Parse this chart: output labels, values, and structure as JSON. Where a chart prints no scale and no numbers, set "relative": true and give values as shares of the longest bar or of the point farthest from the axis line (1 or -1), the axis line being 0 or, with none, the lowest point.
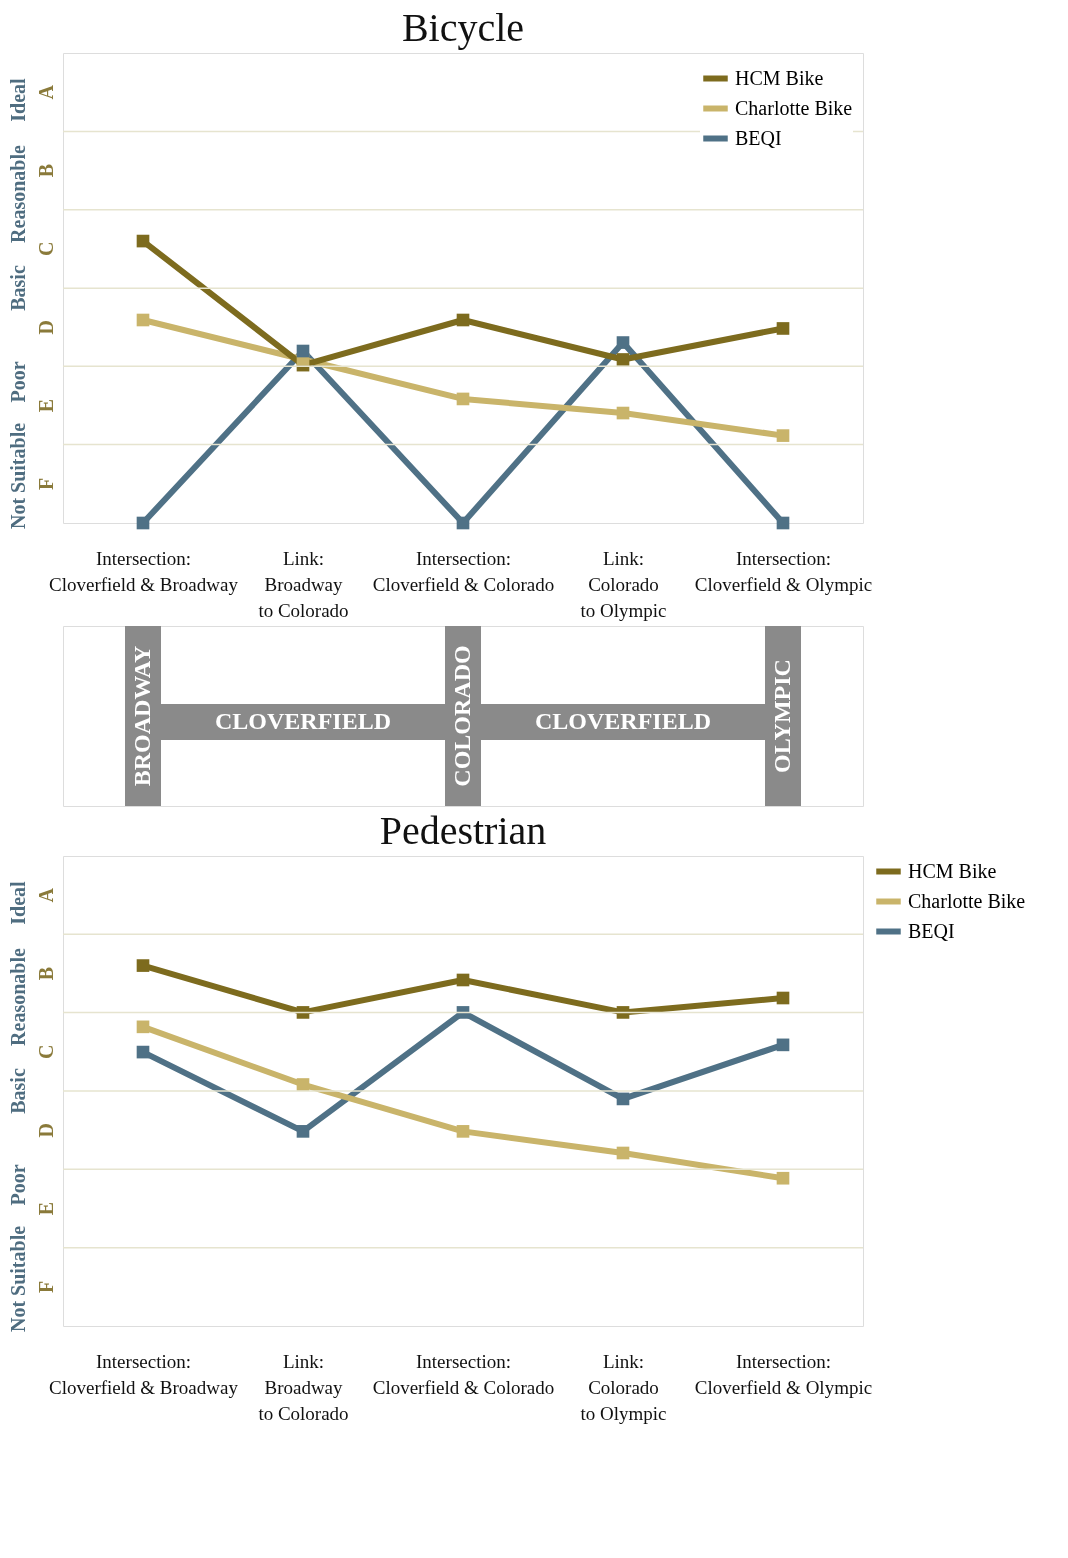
{
  "chart_data": [
    {
      "type": "line",
      "title": "Bicycle",
      "categories": [
        "Intersection:\nCloverfield & Broadway",
        "Link:\nBroadway\nto Colorado",
        "Intersection:\nCloverfield & Colorado",
        "Link:\nColorado\nto Olympic",
        "Intersection:\nCloverfield & Olympic"
      ],
      "relative": true,
      "series": [
        {
          "name": "HCM Bike",
          "color": "#7d6b1e",
          "values": [
            1.0,
            0.56,
            0.72,
            0.58,
            0.69
          ]
        },
        {
          "name": "Charlotte Bike",
          "color": "#c9b46a",
          "values": [
            0.72,
            0.58,
            0.44,
            0.39,
            0.31
          ]
        },
        {
          "name": "BEQI",
          "color": "#4f7186",
          "values": [
            0,
            0.61,
            0,
            0.64,
            0
          ]
        }
      ],
      "ref_lines": [
        {
          "axis": "y",
          "value": 0.278,
          "color": "#e6e4cf"
        },
        {
          "axis": "y",
          "value": 0.556,
          "color": "#e6e4cf"
        },
        {
          "axis": "y",
          "value": 0.833,
          "color": "#e6e4cf"
        },
        {
          "axis": "y",
          "value": 1.111,
          "color": "#e6e4cf"
        },
        {
          "axis": "y",
          "value": 1.389,
          "color": "#e6e4cf"
        }
      ],
      "annotations": [
        "Ideal",
        "Reasonable",
        "Basic",
        "Poor",
        "Not Suitable",
        "A",
        "B",
        "C",
        "D",
        "E",
        "F"
      ],
      "grid": false,
      "legend": "top right",
      "marker": "square",
      "line_style": "solid"
    },
    {
      "type": "other",
      "annotations": [
        "BROADWAY",
        "CLOVERFIELD",
        "COLORADO",
        "CLOVERFIELD",
        "OLYMPIC"
      ]
    },
    {
      "type": "line",
      "title": "Pedestrian",
      "categories": [
        "Intersection:\nCloverfield & Broadway",
        "Link:\nBroadway\nto Colorado",
        "Intersection:\nCloverfield & Colorado",
        "Link:\nColorado\nto Olympic",
        "Intersection:\nCloverfield & Olympic"
      ],
      "relative": true,
      "series": [
        {
          "name": "HCM Bike",
          "color": "#7d6b1e",
          "values": [
            1.0,
            0.87,
            0.96,
            0.87,
            0.91
          ]
        },
        {
          "name": "Charlotte Bike",
          "color": "#c9b46a",
          "values": [
            0.83,
            0.67,
            0.54,
            0.48,
            0.41
          ]
        },
        {
          "name": "BEQI",
          "color": "#4f7186",
          "values": [
            0.76,
            0.54,
            0.87,
            0.63,
            0.78
          ]
        }
      ],
      "ref_lines": [
        {
          "axis": "y",
          "value": 0.217,
          "color": "#e6e4cf"
        },
        {
          "axis": "y",
          "value": 0.435,
          "color": "#e6e4cf"
        },
        {
          "axis": "y",
          "value": 0.652,
          "color": "#e6e4cf"
        },
        {
          "axis": "y",
          "value": 0.87,
          "color": "#e6e4cf"
        },
        {
          "axis": "y",
          "value": 1.087,
          "color": "#e6e4cf"
        }
      ],
      "annotations": [
        "Ideal",
        "Reasonable",
        "Basic",
        "Poor",
        "Not Suitable",
        "A",
        "B",
        "C",
        "D",
        "E",
        "F"
      ],
      "grid": false,
      "legend": "right",
      "marker": "square",
      "line_style": "solid"
    }
  ]
}
